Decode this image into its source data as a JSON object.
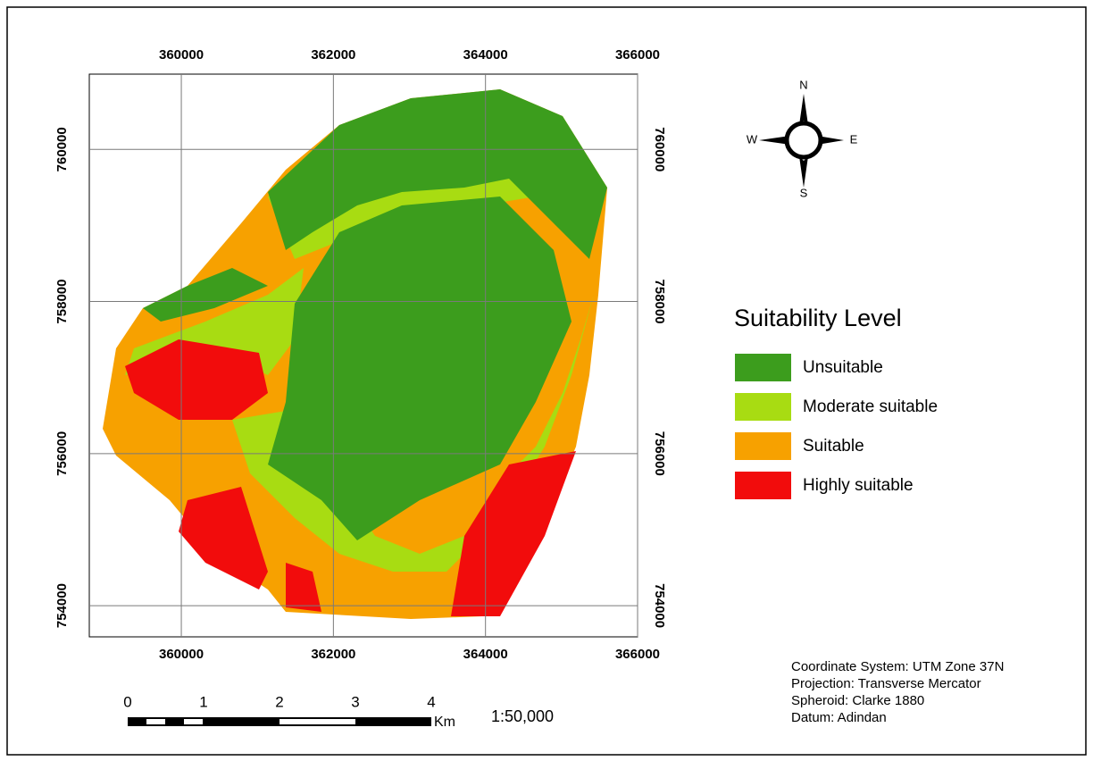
{
  "map": {
    "xlim": [
      358790,
      366000
    ],
    "ylim": [
      753590,
      760990
    ],
    "xticks": [
      360000,
      362000,
      364000,
      366000
    ],
    "yticks": [
      754000,
      756000,
      758000,
      760000
    ]
  },
  "north_arrow": {
    "n": "N",
    "e": "E",
    "s": "S",
    "w": "W"
  },
  "legend": {
    "title": "Suitability Level",
    "items": [
      {
        "label": "Unsuitable",
        "color": "#3c9d1d"
      },
      {
        "label": "Moderate suitable",
        "color": "#a8dc12"
      },
      {
        "label": "Suitable",
        "color": "#f7a100"
      },
      {
        "label": "Highly suitable",
        "color": "#f20c0c"
      }
    ]
  },
  "scale_bar": {
    "labels": [
      "0",
      "1",
      "2",
      "3",
      "4"
    ],
    "unit": "Km",
    "ratio": "1:50,000"
  },
  "info": [
    "Coordinate System: UTM Zone 37N",
    "Projection: Transverse Mercator",
    "Spheroid: Clarke 1880",
    "Datum: Adindan"
  ]
}
